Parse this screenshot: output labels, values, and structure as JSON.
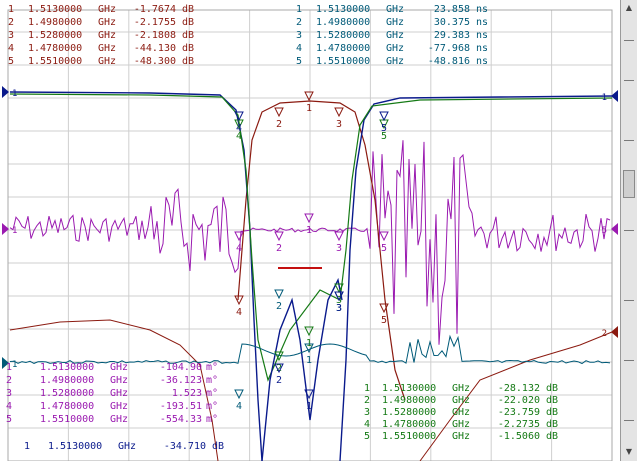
{
  "colors": {
    "ch1": "#8b1a10",
    "ch2": "#005a78",
    "ch3": "#9a1ab0",
    "ch4": "#157a15",
    "ch5": "#0a1a8c",
    "grid": "#cfcfcf"
  },
  "marker_tables": {
    "top_left": {
      "color": "#8b1a10",
      "rows": [
        {
          "n": "1",
          "freq": "1.5130000",
          "unit": "GHz",
          "value": "-1.7674",
          "vunit": "dB"
        },
        {
          "n": "2",
          "freq": "1.4980000",
          "unit": "GHz",
          "value": "-2.1755",
          "vunit": "dB"
        },
        {
          "n": "3",
          "freq": "1.5280000",
          "unit": "GHz",
          "value": "-2.1808",
          "vunit": "dB"
        },
        {
          "n": "4",
          "freq": "1.4780000",
          "unit": "GHz",
          "value": "-44.130",
          "vunit": "dB"
        },
        {
          "n": "5",
          "freq": "1.5510000",
          "unit": "GHz",
          "value": "-48.300",
          "vunit": "dB"
        }
      ]
    },
    "top_right": {
      "color": "#005a78",
      "rows": [
        {
          "n": "1",
          "freq": "1.5130000",
          "unit": "GHz",
          "value": "23.858",
          "vunit": "ns"
        },
        {
          "n": "2",
          "freq": "1.4980000",
          "unit": "GHz",
          "value": "30.375",
          "vunit": "ns"
        },
        {
          "n": "3",
          "freq": "1.5280000",
          "unit": "GHz",
          "value": "29.383",
          "vunit": "ns"
        },
        {
          "n": "4",
          "freq": "1.4780000",
          "unit": "GHz",
          "value": "-77.968",
          "vunit": "ns"
        },
        {
          "n": "5",
          "freq": "1.5510000",
          "unit": "GHz",
          "value": "-48.816",
          "vunit": "ns"
        }
      ]
    },
    "mid_left": {
      "color": "#9a1ab0",
      "rows": [
        {
          "n": "1",
          "freq": "1.5130000",
          "unit": "GHz",
          "value": "-104.90",
          "vunit": "m°"
        },
        {
          "n": "2",
          "freq": "1.4980000",
          "unit": "GHz",
          "value": "-36.123",
          "vunit": "m°"
        },
        {
          "n": "3",
          "freq": "1.5280000",
          "unit": "GHz",
          "value": "1.523",
          "vunit": "m°"
        },
        {
          "n": "4",
          "freq": "1.4780000",
          "unit": "GHz",
          "value": "-193.51",
          "vunit": "m°"
        },
        {
          "n": "5",
          "freq": "1.5510000",
          "unit": "GHz",
          "value": "-554.33",
          "vunit": "m°"
        }
      ]
    },
    "bottom_right": {
      "color": "#157a15",
      "rows": [
        {
          "n": "1",
          "freq": "1.5130000",
          "unit": "GHz",
          "value": "-28.132",
          "vunit": "dB"
        },
        {
          "n": "2",
          "freq": "1.4980000",
          "unit": "GHz",
          "value": "-22.020",
          "vunit": "dB"
        },
        {
          "n": "3",
          "freq": "1.5280000",
          "unit": "GHz",
          "value": "-23.759",
          "vunit": "dB"
        },
        {
          "n": "4",
          "freq": "1.4780000",
          "unit": "GHz",
          "value": "-2.2735",
          "vunit": "dB"
        },
        {
          "n": "5",
          "freq": "1.5510000",
          "unit": "GHz",
          "value": "-1.5060",
          "vunit": "dB"
        }
      ]
    },
    "bottom_left": {
      "color": "#0a1a8c",
      "rows": [
        {
          "n": "1",
          "freq": "1.5130000",
          "unit": "GHz",
          "value": "-34.710",
          "vunit": "dB"
        }
      ]
    }
  },
  "trace_ref_labels": {
    "left": [
      "1",
      "1",
      "1"
    ],
    "right": [
      "2",
      "5",
      "1"
    ]
  },
  "trace_markers": {
    "s21": [
      "1",
      "2",
      "3",
      "4",
      "5"
    ],
    "phase": [
      "1",
      "2",
      "3",
      "4",
      "5"
    ],
    "s11": [
      "1",
      "2",
      "3",
      "4",
      "5"
    ],
    "delay": [
      "1",
      "2",
      "3",
      "4"
    ],
    "s22": [
      "1",
      "2",
      "3",
      "4",
      "5"
    ]
  }
}
